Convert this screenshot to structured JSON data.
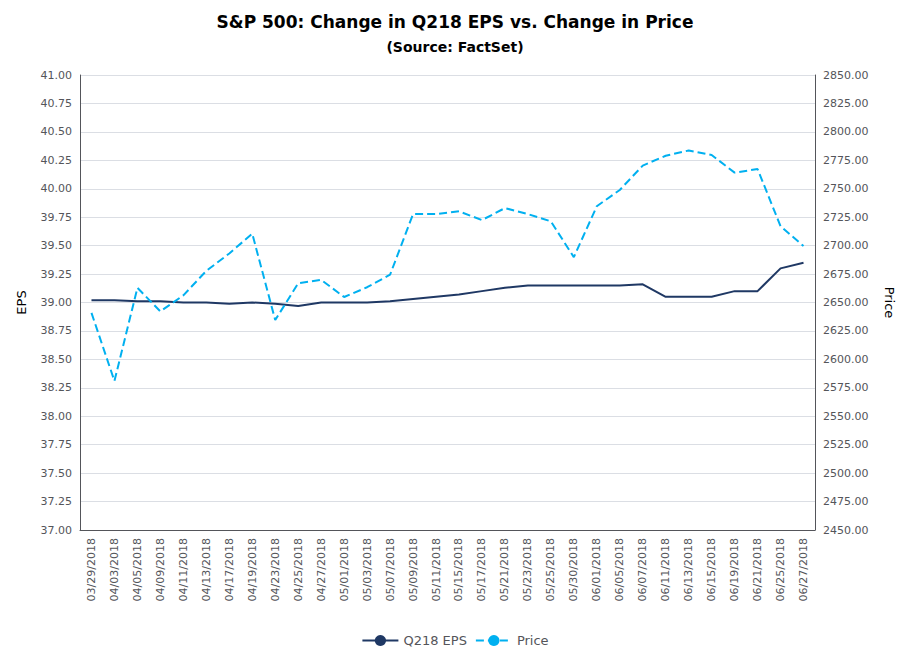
{
  "chart_data": {
    "type": "line",
    "title": "S&P 500: Change in Q218 EPS vs. Change in Price",
    "subtitle": "(Source: FactSet)",
    "ylabel": "EPS",
    "y2label": "Price",
    "categories": [
      "03/29/2018",
      "04/03/2018",
      "04/05/2018",
      "04/09/2018",
      "04/11/2018",
      "04/13/2018",
      "04/17/2018",
      "04/19/2018",
      "04/23/2018",
      "04/25/2018",
      "04/27/2018",
      "05/01/2018",
      "05/03/2018",
      "05/07/2018",
      "05/09/2018",
      "05/11/2018",
      "05/15/2018",
      "05/17/2018",
      "05/21/2018",
      "05/23/2018",
      "05/25/2018",
      "05/30/2018",
      "06/01/2018",
      "06/05/2018",
      "06/07/2018",
      "06/11/2018",
      "06/13/2018",
      "06/15/2018",
      "06/19/2018",
      "06/21/2018",
      "06/25/2018",
      "06/27/2018"
    ],
    "series": [
      {
        "name": "Q218 EPS",
        "color": "#1f3864",
        "line_style": "solid",
        "values": [
          39.02,
          39.02,
          39.01,
          39.01,
          39.0,
          39.0,
          38.99,
          39.0,
          38.99,
          38.97,
          39.0,
          39.0,
          39.0,
          39.01,
          39.03,
          39.05,
          39.07,
          39.1,
          39.13,
          39.15,
          39.15,
          39.15,
          39.15,
          39.15,
          39.16,
          39.05,
          39.05,
          39.05,
          39.1,
          39.1,
          39.3,
          39.35
        ]
      },
      {
        "name": "Price",
        "color": "#00b0f0",
        "line_style": "dashed",
        "axis": "y2",
        "values": [
          2640.87,
          2581.0,
          2662.84,
          2642.19,
          2656.3,
          2677.84,
          2693.13,
          2710.48,
          2634.56,
          2666.94,
          2669.91,
          2654.8,
          2663.42,
          2674.45,
          2727.72,
          2727.72,
          2730.13,
          2722.46,
          2733.01,
          2727.76,
          2721.33,
          2689.86,
          2734.62,
          2748.93,
          2770.37,
          2779.03,
          2783.63,
          2779.66,
          2764.17,
          2767.32,
          2717.07,
          2699.63
        ]
      }
    ],
    "ylim": [
      37.0,
      41.0
    ],
    "yticks": [
      {
        "value": 37.0,
        "label": "37.00"
      },
      37.25,
      {
        "value": 37.5,
        "label": "37.50"
      },
      37.75,
      {
        "value": 38.0,
        "label": "38.00"
      },
      38.25,
      {
        "value": 38.5,
        "label": "38.50"
      },
      38.75,
      {
        "value": 39.0,
        "label": "39.00"
      },
      39.25,
      {
        "value": 39.5,
        "label": "39.50"
      },
      39.75,
      {
        "value": 40.0,
        "label": "40.00"
      },
      40.25,
      {
        "value": 40.5,
        "label": "40.50"
      },
      40.75,
      {
        "value": 41.0,
        "label": "41.00"
      }
    ],
    "y2lim": [
      2450.0,
      2850.0
    ],
    "y2ticks": [
      {
        "value": 2450,
        "label": "2450.00"
      },
      {
        "value": 2475,
        "label": "2475.00"
      },
      {
        "value": 2500,
        "label": "2500.00"
      },
      {
        "value": 2525,
        "label": "2525.00"
      },
      {
        "value": 2550,
        "label": "2550.00"
      },
      {
        "value": 2575,
        "label": "2575.00"
      },
      {
        "value": 2600,
        "label": "2600.00"
      },
      {
        "value": 2625,
        "label": "2625.00"
      },
      {
        "value": 2650,
        "label": "2650.00"
      },
      {
        "value": 2675,
        "label": "2675.00"
      },
      {
        "value": 2700,
        "label": "2700.00"
      },
      {
        "value": 2725,
        "label": "2725.00"
      },
      {
        "value": 2750,
        "label": "2750.00"
      },
      {
        "value": 2775,
        "label": "2775.00"
      },
      {
        "value": 2800,
        "label": "2800.00"
      },
      {
        "value": 2825,
        "label": "2825.00"
      },
      {
        "value": 2850,
        "label": "2850.00"
      }
    ],
    "grid": true,
    "legend": "bottom"
  }
}
